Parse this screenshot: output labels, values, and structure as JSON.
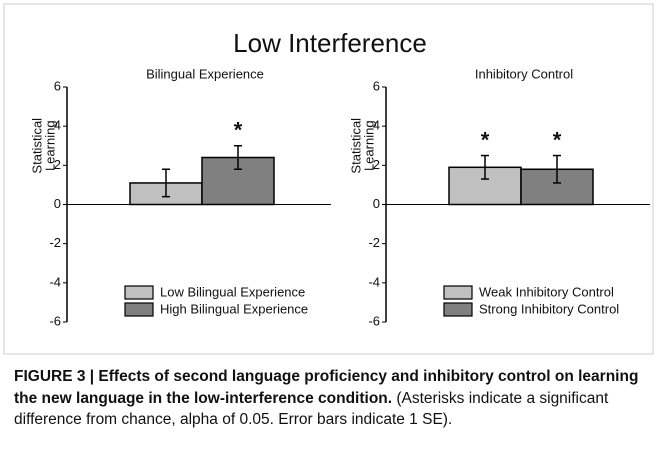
{
  "figure_title": "Low Interference",
  "caption": {
    "label": "FIGURE 3 | Effects of second language proficiency and inhibitory control on learning the new language in the low-interference condition.",
    "text": "(Asterisks indicate a significant difference from chance, alpha of 0.05. Error bars indicate 1 SE)."
  },
  "chart_data": [
    {
      "type": "bar",
      "title": "Bilingual Experience",
      "ylabel": [
        "Statistical",
        "Learning"
      ],
      "ylim": [
        -6,
        6
      ],
      "yticks": [
        -6,
        -4,
        -2,
        0,
        2,
        4,
        6
      ],
      "legend": "lower right",
      "series": [
        {
          "name": "Low Bilingual Experience",
          "color": "#c0c0c0",
          "values": [
            1.1
          ],
          "errors": [
            0.7
          ]
        },
        {
          "name": "High Bilingual Experience",
          "color": "#808080",
          "values": [
            2.4
          ],
          "errors": [
            0.6
          ],
          "annotation": "*"
        }
      ]
    },
    {
      "type": "bar",
      "title": "Inhibitory Control",
      "ylabel": [
        "Statistical",
        "Learning"
      ],
      "ylim": [
        -6,
        6
      ],
      "yticks": [
        -6,
        -4,
        -2,
        0,
        2,
        4,
        6
      ],
      "legend": "lower right",
      "series": [
        {
          "name": "Weak Inhibitory Control",
          "color": "#c0c0c0",
          "values": [
            1.9
          ],
          "errors": [
            0.6
          ],
          "annotation": "*"
        },
        {
          "name": "Strong Inhibitory Control",
          "color": "#808080",
          "values": [
            1.8
          ],
          "errors": [
            0.7
          ],
          "annotation": "*"
        }
      ]
    }
  ]
}
